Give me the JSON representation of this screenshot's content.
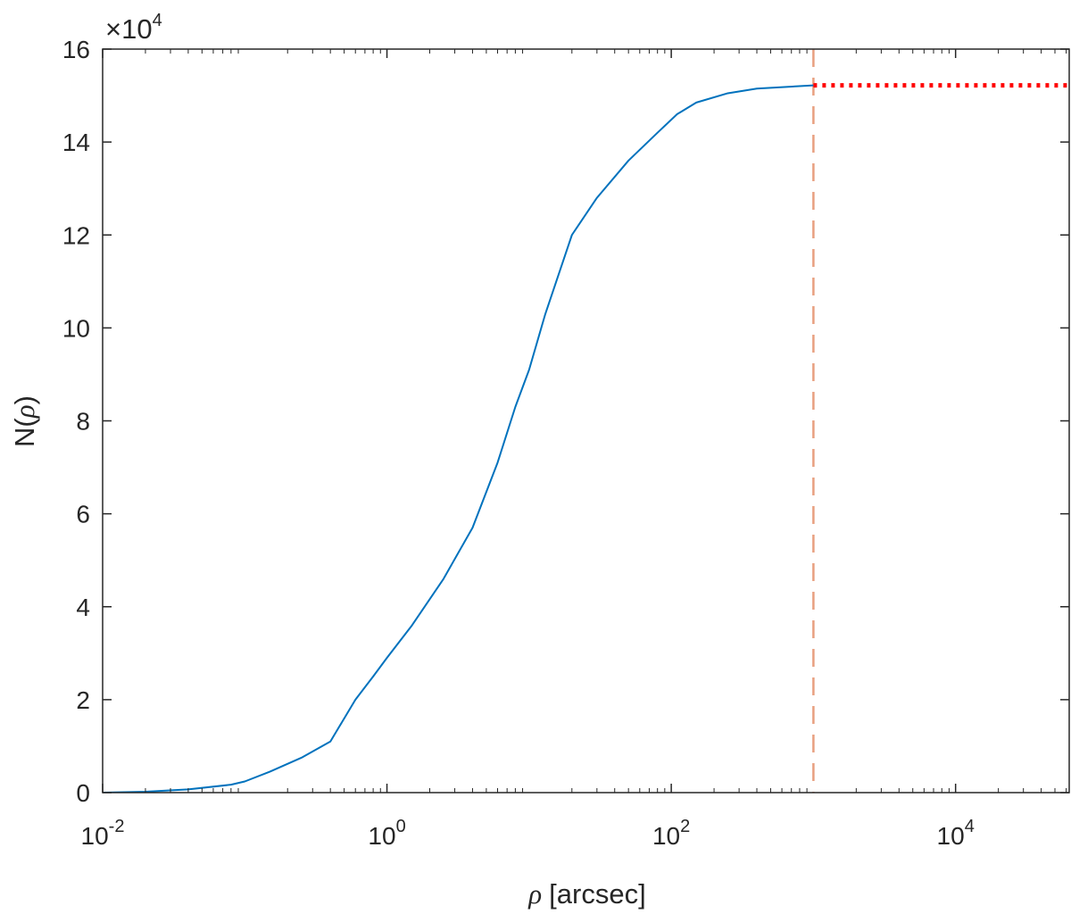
{
  "chart_data": {
    "type": "line",
    "title": "",
    "xlabel": "[arcsec]",
    "xlabel_symbol": "ρ",
    "ylabel_prefix": "N(",
    "ylabel_symbol": "ρ",
    "ylabel_suffix": ")",
    "xscale": "log",
    "xlim": [
      0.01,
      63000
    ],
    "ylim": [
      0,
      160000
    ],
    "y_multiplier": "×10",
    "y_multiplier_exponent": "4",
    "x_ticks": [
      {
        "value": 0.01,
        "base": "10",
        "exp": "-2"
      },
      {
        "value": 1,
        "base": "10",
        "exp": "0"
      },
      {
        "value": 100,
        "base": "10",
        "exp": "2"
      },
      {
        "value": 10000,
        "base": "10",
        "exp": "4"
      }
    ],
    "y_ticks": [
      {
        "value": 0,
        "label": "0"
      },
      {
        "value": 20000,
        "label": "2"
      },
      {
        "value": 40000,
        "label": "4"
      },
      {
        "value": 60000,
        "label": "6"
      },
      {
        "value": 80000,
        "label": "8"
      },
      {
        "value": 100000,
        "label": "10"
      },
      {
        "value": 120000,
        "label": "12"
      },
      {
        "value": 140000,
        "label": "14"
      },
      {
        "value": 160000,
        "label": "16"
      }
    ],
    "grid": false,
    "series": [
      {
        "color": "#0072BD",
        "style": "solid",
        "x": [
          0.01,
          0.02,
          0.04,
          0.08,
          0.1,
          0.15,
          0.25,
          0.4,
          0.6,
          0.8,
          1.0,
          1.5,
          2.5,
          4,
          6,
          8,
          10,
          13,
          20,
          30,
          50,
          80,
          110,
          150,
          250,
          400,
          1000
        ],
        "y": [
          0,
          200,
          700,
          1700,
          2400,
          4500,
          7500,
          11000,
          20000,
          25000,
          29000,
          36000,
          46000,
          57000,
          71000,
          83000,
          91000,
          103000,
          120000,
          128000,
          136000,
          142000,
          146000,
          148500,
          150500,
          151500,
          152200
        ]
      },
      {
        "color": "#FF0000",
        "style": "dotted",
        "x": [
          1000,
          63000
        ],
        "y": [
          152200,
          152200
        ]
      }
    ],
    "reference_lines": [
      {
        "orientation": "vertical",
        "x": 1000,
        "color": "#E8A080",
        "style": "dashed"
      }
    ]
  }
}
